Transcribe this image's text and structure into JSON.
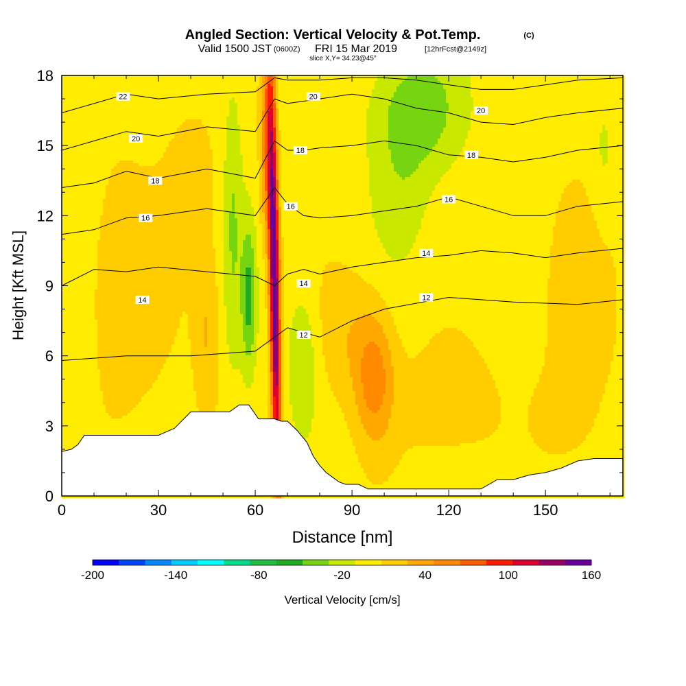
{
  "title": {
    "main": "Angled Section: Vertical Velocity & Pot.Temp.",
    "copyright": "(C)",
    "valid_prefix": "Valid 1500 JST",
    "valid_utc": "(0600Z)",
    "valid_date": "FRI 15 Mar 2019",
    "forecast": "[12hrFcst@2149z]",
    "slice": "slice X,Y= 34.23@45°"
  },
  "chart_data": {
    "type": "heatmap",
    "title": "Angled Section: Vertical Velocity & Pot.Temp.",
    "xlabel": "Distance [nm]",
    "ylabel": "Height [Kft MSL]",
    "xlim": [
      0,
      174
    ],
    "ylim": [
      0,
      18
    ],
    "x_ticks": [
      0,
      30,
      60,
      90,
      120,
      150
    ],
    "y_ticks": [
      0,
      3,
      6,
      9,
      12,
      15,
      18
    ],
    "fill_variable": "Vertical Velocity [cm/s]",
    "colorbar": {
      "label": "Vertical Velocity [cm/s]",
      "levels": [
        -200,
        -180,
        -160,
        -140,
        -120,
        -100,
        -80,
        -60,
        -40,
        -20,
        0,
        20,
        40,
        60,
        80,
        100,
        120,
        140,
        160
      ],
      "tick_labels": [
        "-200",
        "-140",
        "-80",
        "-20",
        "40",
        "100",
        "160"
      ],
      "colors": [
        "#0000ff",
        "#0044ff",
        "#0088ff",
        "#00ccff",
        "#00ffff",
        "#00dd88",
        "#22bb44",
        "#22aa22",
        "#77d411",
        "#c8e800",
        "#ffec00",
        "#ffcc00",
        "#ffa800",
        "#ff8a00",
        "#ff5a00",
        "#ff1a00",
        "#dd0033",
        "#990066",
        "#660099"
      ]
    },
    "terrain_profile": {
      "x": [
        0,
        3,
        5,
        7,
        10,
        15,
        20,
        25,
        30,
        35,
        40,
        45,
        50,
        52,
        55,
        58,
        61,
        64,
        66,
        68,
        70,
        73,
        76,
        78,
        80,
        82,
        84,
        86,
        88,
        90,
        92,
        95,
        100,
        110,
        120,
        130,
        135,
        140,
        145,
        150,
        155,
        160,
        165,
        170,
        174
      ],
      "y": [
        1.9,
        2.0,
        2.2,
        2.6,
        2.6,
        2.6,
        2.6,
        2.6,
        2.6,
        2.9,
        3.6,
        3.6,
        3.6,
        3.6,
        3.9,
        3.9,
        3.3,
        3.3,
        3.3,
        3.2,
        3.2,
        2.8,
        2.3,
        1.7,
        1.3,
        1.0,
        0.8,
        0.6,
        0.5,
        0.5,
        0.5,
        0.3,
        0.3,
        0.3,
        0.3,
        0.3,
        0.7,
        0.7,
        0.9,
        1.0,
        1.2,
        1.5,
        1.6,
        1.6,
        1.6
      ]
    },
    "contour_variable": "Pot.Temp. (°C)",
    "contours": [
      {
        "level": 12,
        "x": [
          0,
          20,
          40,
          60,
          66,
          70,
          75,
          80,
          90,
          100,
          120,
          140,
          160,
          174
        ],
        "y": [
          5.8,
          6.0,
          6.0,
          6.2,
          6.8,
          7.2,
          7.0,
          6.8,
          7.5,
          8.0,
          8.5,
          8.3,
          8.2,
          8.4
        ]
      },
      {
        "level": 14,
        "x": [
          0,
          10,
          20,
          30,
          45,
          60,
          66,
          70,
          75,
          80,
          90,
          100,
          110,
          120,
          130,
          140,
          150,
          160,
          174
        ],
        "y": [
          9.0,
          9.7,
          9.6,
          9.8,
          9.6,
          9.4,
          9.0,
          9.5,
          9.7,
          9.5,
          9.8,
          10.0,
          10.2,
          10.3,
          10.5,
          10.4,
          10.2,
          10.4,
          10.6
        ]
      },
      {
        "level": 16,
        "x": [
          0,
          10,
          20,
          30,
          45,
          60,
          66,
          70,
          75,
          80,
          90,
          100,
          110,
          120,
          130,
          140,
          150,
          160,
          174
        ],
        "y": [
          11.2,
          11.4,
          11.9,
          12.0,
          12.3,
          12.0,
          13.2,
          12.5,
          12.0,
          11.9,
          12.0,
          12.2,
          12.4,
          12.8,
          12.4,
          12.0,
          12.0,
          12.4,
          12.6
        ]
      },
      {
        "level": 18,
        "x": [
          0,
          10,
          20,
          30,
          45,
          60,
          66,
          70,
          75,
          80,
          90,
          100,
          110,
          120,
          130,
          140,
          150,
          160,
          174
        ],
        "y": [
          13.2,
          13.4,
          13.9,
          13.6,
          14.0,
          13.6,
          15.2,
          14.8,
          14.8,
          14.9,
          15.0,
          15.2,
          15.0,
          14.6,
          14.5,
          14.3,
          14.5,
          14.8,
          15.0
        ]
      },
      {
        "level": 20,
        "x": [
          0,
          10,
          20,
          30,
          45,
          60,
          66,
          70,
          75,
          80,
          90,
          100,
          110,
          120,
          130,
          140,
          150,
          160,
          174
        ],
        "y": [
          14.8,
          15.2,
          15.6,
          15.4,
          15.8,
          15.6,
          17.0,
          16.8,
          16.9,
          17.0,
          17.2,
          17.0,
          16.6,
          16.4,
          16.0,
          15.9,
          16.2,
          16.4,
          16.6
        ]
      },
      {
        "level": 22,
        "x": [
          0,
          10,
          20,
          30,
          45,
          60,
          66,
          70,
          75,
          80,
          90,
          100,
          110,
          120,
          130,
          140,
          150,
          160,
          174
        ],
        "y": [
          16.4,
          16.8,
          17.2,
          17.0,
          17.2,
          17.3,
          17.9,
          17.8,
          17.8,
          17.8,
          17.9,
          17.9,
          17.8,
          17.6,
          17.4,
          17.4,
          17.6,
          17.8,
          17.9
        ]
      }
    ],
    "contour_labels": [
      {
        "text": "22",
        "x": 19,
        "y": 17.1
      },
      {
        "text": "20",
        "x": 23,
        "y": 15.3
      },
      {
        "text": "18",
        "x": 29,
        "y": 13.5
      },
      {
        "text": "16",
        "x": 26,
        "y": 11.9
      },
      {
        "text": "14",
        "x": 25,
        "y": 8.4
      },
      {
        "text": "20",
        "x": 78,
        "y": 17.1
      },
      {
        "text": "18",
        "x": 74,
        "y": 14.8
      },
      {
        "text": "16",
        "x": 71,
        "y": 12.4
      },
      {
        "text": "14",
        "x": 75,
        "y": 9.1
      },
      {
        "text": "12",
        "x": 75,
        "y": 6.9
      },
      {
        "text": "20",
        "x": 130,
        "y": 16.5
      },
      {
        "text": "18",
        "x": 127,
        "y": 14.6
      },
      {
        "text": "16",
        "x": 120,
        "y": 12.7
      },
      {
        "text": "14",
        "x": 113,
        "y": 10.4
      },
      {
        "text": "12",
        "x": 113,
        "y": 8.5
      }
    ],
    "velocity_features": [
      {
        "x": 66,
        "y": 9,
        "sx": 1.6,
        "sy": 9,
        "value": 170,
        "tilt": -0.12
      },
      {
        "x": 63.5,
        "y": 15,
        "sx": 2.0,
        "sy": 4,
        "value": 60,
        "tilt": 0
      },
      {
        "x": 58,
        "y": 8.5,
        "sx": 2.2,
        "sy": 3,
        "value": -55,
        "tilt": 0
      },
      {
        "x": 53,
        "y": 12,
        "sx": 3,
        "sy": 6,
        "value": -30,
        "tilt": 0
      },
      {
        "x": 75,
        "y": 6,
        "sx": 5,
        "sy": 3,
        "value": -30,
        "tilt": 0
      },
      {
        "x": 110,
        "y": 16.5,
        "sx": 13,
        "sy": 2.5,
        "value": -45,
        "tilt": 0
      },
      {
        "x": 105,
        "y": 13,
        "sx": 9,
        "sy": 3,
        "value": -20,
        "tilt": 0
      },
      {
        "x": 97,
        "y": 5,
        "sx": 6,
        "sy": 2.8,
        "value": 55,
        "tilt": 0
      },
      {
        "x": 88,
        "y": 7,
        "sx": 10,
        "sy": 3,
        "value": 25,
        "tilt": 0
      },
      {
        "x": 120,
        "y": 4,
        "sx": 18,
        "sy": 3,
        "value": 20,
        "tilt": 0
      },
      {
        "x": 45,
        "y": 7,
        "sx": 4,
        "sy": 4,
        "value": 30,
        "tilt": 0
      },
      {
        "x": 20,
        "y": 9,
        "sx": 15,
        "sy": 6,
        "value": 22,
        "tilt": 0
      },
      {
        "x": 40,
        "y": 14,
        "sx": 8,
        "sy": 3,
        "value": 18,
        "tilt": 0
      },
      {
        "x": 160,
        "y": 8,
        "sx": 12,
        "sy": 6,
        "value": 22,
        "tilt": 0
      },
      {
        "x": 155,
        "y": 3.5,
        "sx": 8,
        "sy": 1.5,
        "value": 15,
        "tilt": 0
      },
      {
        "x": 168,
        "y": 14,
        "sx": 4,
        "sy": 3,
        "value": -15,
        "tilt": 0
      }
    ]
  }
}
